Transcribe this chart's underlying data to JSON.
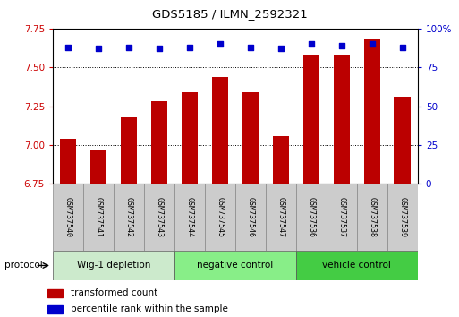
{
  "title": "GDS5185 / ILMN_2592321",
  "samples": [
    "GSM737540",
    "GSM737541",
    "GSM737542",
    "GSM737543",
    "GSM737544",
    "GSM737545",
    "GSM737546",
    "GSM737547",
    "GSM737536",
    "GSM737537",
    "GSM737538",
    "GSM737539"
  ],
  "transformed_counts": [
    7.04,
    6.97,
    7.18,
    7.28,
    7.34,
    7.44,
    7.34,
    7.06,
    7.58,
    7.58,
    7.68,
    7.31
  ],
  "percentile_ranks": [
    88,
    87,
    88,
    87,
    88,
    90,
    88,
    87,
    90,
    89,
    90,
    88
  ],
  "ylim_left": [
    6.75,
    7.75
  ],
  "ylim_right": [
    0,
    100
  ],
  "yticks_left": [
    6.75,
    7.0,
    7.25,
    7.5,
    7.75
  ],
  "yticks_right": [
    0,
    25,
    50,
    75,
    100
  ],
  "bar_color": "#bb0000",
  "dot_color": "#0000cc",
  "groups": [
    {
      "label": "Wig-1 depletion",
      "start": 0,
      "end": 4,
      "color": "#cceecc"
    },
    {
      "label": "negative control",
      "start": 4,
      "end": 8,
      "color": "#88ee88"
    },
    {
      "label": "vehicle control",
      "start": 8,
      "end": 12,
      "color": "#55cc55"
    }
  ],
  "protocol_label": "protocol",
  "legend_items": [
    {
      "color": "#bb0000",
      "label": "transformed count"
    },
    {
      "color": "#0000cc",
      "label": "percentile rank within the sample"
    }
  ],
  "tick_color_left": "#cc0000",
  "tick_color_right": "#0000cc",
  "bar_width": 0.55,
  "label_box_color": "#cccccc",
  "label_box_edge": "#888888",
  "background_color": "#ffffff"
}
